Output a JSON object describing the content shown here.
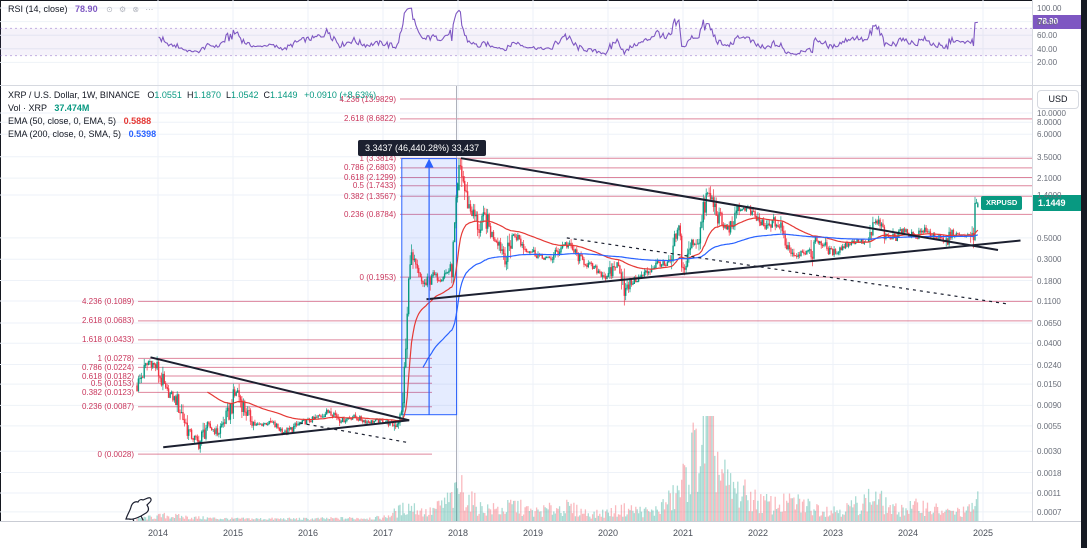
{
  "colors": {
    "up": "#089981",
    "down": "#f23645",
    "vol_up": "rgba(8,153,129,0.35)",
    "vol_down": "rgba(242,54,69,0.35)",
    "ema_fast": "#e53935",
    "ema_slow": "#2962ff",
    "rsi": "#7e57c2",
    "rsi_band": "rgba(126,87,194,0.08)",
    "rsi_band_line": "rgba(126,87,194,0.45)",
    "oversold": "rgba(242,54,69,0.28)",
    "fib": "#c9365c",
    "fib_line": "rgba(201,54,92,0.6)",
    "trend": "#1c2030",
    "measure_blue": "#2962ff",
    "measure_fill": "rgba(41,98,255,0.12)",
    "badge_green": "#089981",
    "grid": "#eef2f8",
    "axis_text": "#696e79"
  },
  "rsi_pane": {
    "legend": {
      "title": "RSI (14, close)",
      "value": "78.90"
    },
    "value_badge": "78.90",
    "axis_ticks": [
      [
        "100.00",
        100
      ],
      [
        "80.00",
        80
      ],
      [
        "60.00",
        60
      ],
      [
        "40.00",
        40
      ],
      [
        "20.00",
        20
      ]
    ],
    "band": [
      30,
      70
    ]
  },
  "main_pane": {
    "legend_symbol": {
      "title": "XRP / U.S. Dollar, 1W, BINANCE",
      "ohlc": [
        [
          "O",
          "1.0551"
        ],
        [
          "H",
          "1.1870"
        ],
        [
          "L",
          "1.0542"
        ],
        [
          "C",
          "1.1449"
        ]
      ],
      "change": "+0.0910 (+8.63%)"
    },
    "legend_vol": {
      "title": "Vol · XRP",
      "value": "37.474M"
    },
    "legend_ema50": {
      "title": "EMA (50, close, 0, EMA, 5)",
      "value": "0.5888"
    },
    "legend_ema200": {
      "title": "EMA (200, close, 0, SMA, 5)",
      "value": "0.5398"
    },
    "price_axis": {
      "currency_button": "USD",
      "symbol_tag": "XRPUSD",
      "ticks": [
        [
          "10.0000",
          10
        ],
        [
          "8.0000",
          8
        ],
        [
          "6.0000",
          6
        ],
        [
          "3.5000",
          3.5
        ],
        [
          "2.1000",
          2.1
        ],
        [
          "1.4000",
          1.4
        ],
        [
          "0.5000",
          0.5
        ],
        [
          "0.3000",
          0.3
        ],
        [
          "0.1800",
          0.18
        ],
        [
          "0.1100",
          0.11
        ],
        [
          "0.0650",
          0.065
        ],
        [
          "0.0400",
          0.04
        ],
        [
          "0.0240",
          0.024
        ],
        [
          "0.0150",
          0.015
        ],
        [
          "0.0090",
          0.009
        ],
        [
          "0.0055",
          0.0055
        ],
        [
          "0.0030",
          0.003
        ],
        [
          "0.0018",
          0.0018
        ],
        [
          "0.0011",
          0.0011
        ],
        [
          "0.0007",
          0.0007
        ]
      ]
    },
    "time_axis": [
      [
        "2014",
        2014
      ],
      [
        "2015",
        2015
      ],
      [
        "2016",
        2016
      ],
      [
        "2017",
        2017
      ],
      [
        "2018",
        2018
      ],
      [
        "2019",
        2019
      ],
      [
        "2020",
        2020
      ],
      [
        "2021",
        2021
      ],
      [
        "2022",
        2022
      ],
      [
        "2023",
        2023
      ],
      [
        "2024",
        2024
      ],
      [
        "2025",
        2025
      ]
    ]
  },
  "chart_data": {
    "type": "candlestick",
    "title": "XRP / U.S. Dollar, 1W, BINANCE",
    "symbol": "XRP/USD",
    "interval": "1W",
    "exchange": "BINANCE",
    "y_scale": "log",
    "currency": "USD",
    "time_range": [
      2013.72,
      2024.935
    ],
    "last_bar": {
      "open": 1.0551,
      "high": 1.187,
      "low": 1.0542,
      "close": 1.1449,
      "close_str": "1.1449",
      "change": "+0.0910",
      "change_pct": "+8.63%"
    },
    "indicators": {
      "rsi_14": 78.9,
      "ema_50": 0.5888,
      "ema_200": 0.5398,
      "volume_display": "37.474M"
    },
    "price_keyframes": [
      [
        2013.72,
        0.0145
      ],
      [
        2013.88,
        0.0265
      ],
      [
        2013.98,
        0.0225
      ],
      [
        2014.1,
        0.013
      ],
      [
        2014.25,
        0.01
      ],
      [
        2014.42,
        0.0046
      ],
      [
        2014.55,
        0.0036
      ],
      [
        2014.65,
        0.0056
      ],
      [
        2014.8,
        0.0047
      ],
      [
        2014.95,
        0.0078
      ],
      [
        2015.05,
        0.013
      ],
      [
        2015.17,
        0.0078
      ],
      [
        2015.3,
        0.0056
      ],
      [
        2015.5,
        0.006
      ],
      [
        2015.7,
        0.0047
      ],
      [
        2015.9,
        0.0059
      ],
      [
        2016.1,
        0.0066
      ],
      [
        2016.3,
        0.008
      ],
      [
        2016.45,
        0.0063
      ],
      [
        2016.6,
        0.0069
      ],
      [
        2016.8,
        0.0061
      ],
      [
        2017.0,
        0.0063
      ],
      [
        2017.15,
        0.0056
      ],
      [
        2017.25,
        0.0072
      ],
      [
        2017.3,
        0.03
      ],
      [
        2017.36,
        0.34
      ],
      [
        2017.42,
        0.25
      ],
      [
        2017.5,
        0.18
      ],
      [
        2017.58,
        0.16
      ],
      [
        2017.65,
        0.21
      ],
      [
        2017.75,
        0.19
      ],
      [
        2017.85,
        0.22
      ],
      [
        2017.92,
        0.25
      ],
      [
        2017.97,
        0.9
      ],
      [
        2018.02,
        2.9
      ],
      [
        2018.06,
        2.2
      ],
      [
        2018.1,
        1.4
      ],
      [
        2018.16,
        1.0
      ],
      [
        2018.22,
        0.85
      ],
      [
        2018.3,
        0.58
      ],
      [
        2018.36,
        0.83
      ],
      [
        2018.45,
        0.55
      ],
      [
        2018.55,
        0.45
      ],
      [
        2018.65,
        0.3
      ],
      [
        2018.72,
        0.54
      ],
      [
        2018.8,
        0.5
      ],
      [
        2018.9,
        0.38
      ],
      [
        2019.0,
        0.36
      ],
      [
        2019.12,
        0.31
      ],
      [
        2019.25,
        0.31
      ],
      [
        2019.42,
        0.44
      ],
      [
        2019.5,
        0.4
      ],
      [
        2019.62,
        0.31
      ],
      [
        2019.75,
        0.26
      ],
      [
        2019.9,
        0.22
      ],
      [
        2020.0,
        0.19
      ],
      [
        2020.1,
        0.27
      ],
      [
        2020.18,
        0.23
      ],
      [
        2020.23,
        0.14
      ],
      [
        2020.32,
        0.175
      ],
      [
        2020.45,
        0.2
      ],
      [
        2020.6,
        0.25
      ],
      [
        2020.68,
        0.28
      ],
      [
        2020.78,
        0.25
      ],
      [
        2020.86,
        0.3
      ],
      [
        2020.91,
        0.55
      ],
      [
        2020.95,
        0.6
      ],
      [
        2021.0,
        0.23
      ],
      [
        2021.06,
        0.29
      ],
      [
        2021.11,
        0.46
      ],
      [
        2021.17,
        0.44
      ],
      [
        2021.23,
        0.57
      ],
      [
        2021.28,
        1.0
      ],
      [
        2021.32,
        1.45
      ],
      [
        2021.36,
        1.35
      ],
      [
        2021.42,
        1.05
      ],
      [
        2021.46,
        0.88
      ],
      [
        2021.52,
        0.68
      ],
      [
        2021.6,
        0.62
      ],
      [
        2021.7,
        0.78
      ],
      [
        2021.76,
        1.02
      ],
      [
        2021.85,
        1.0
      ],
      [
        2021.95,
        0.84
      ],
      [
        2022.0,
        0.77
      ],
      [
        2022.1,
        0.62
      ],
      [
        2022.2,
        0.76
      ],
      [
        2022.3,
        0.63
      ],
      [
        2022.4,
        0.41
      ],
      [
        2022.5,
        0.33
      ],
      [
        2022.6,
        0.37
      ],
      [
        2022.7,
        0.34
      ],
      [
        2022.76,
        0.48
      ],
      [
        2022.85,
        0.45
      ],
      [
        2022.92,
        0.38
      ],
      [
        2023.0,
        0.35
      ],
      [
        2023.1,
        0.39
      ],
      [
        2023.2,
        0.44
      ],
      [
        2023.32,
        0.47
      ],
      [
        2023.42,
        0.45
      ],
      [
        2023.5,
        0.47
      ],
      [
        2023.55,
        0.74
      ],
      [
        2023.62,
        0.7
      ],
      [
        2023.7,
        0.52
      ],
      [
        2023.8,
        0.49
      ],
      [
        2023.88,
        0.61
      ],
      [
        2024.0,
        0.57
      ],
      [
        2024.1,
        0.52
      ],
      [
        2024.2,
        0.61
      ],
      [
        2024.3,
        0.55
      ],
      [
        2024.4,
        0.5
      ],
      [
        2024.5,
        0.44
      ],
      [
        2024.58,
        0.57
      ],
      [
        2024.68,
        0.53
      ],
      [
        2024.78,
        0.53
      ],
      [
        2024.84,
        0.52
      ],
      [
        2024.875,
        0.63
      ],
      [
        2024.9,
        1.05
      ],
      [
        2024.93,
        1.1449
      ]
    ],
    "volume_keyframes": [
      [
        2013.72,
        0.02
      ],
      [
        2014.1,
        0.05
      ],
      [
        2014.5,
        0.03
      ],
      [
        2015.0,
        0.02
      ],
      [
        2016.0,
        0.02
      ],
      [
        2017.0,
        0.03
      ],
      [
        2017.36,
        0.14
      ],
      [
        2017.6,
        0.07
      ],
      [
        2017.95,
        0.22
      ],
      [
        2018.03,
        0.32
      ],
      [
        2018.12,
        0.22
      ],
      [
        2018.3,
        0.12
      ],
      [
        2018.6,
        0.1
      ],
      [
        2018.74,
        0.15
      ],
      [
        2019.0,
        0.08
      ],
      [
        2019.42,
        0.13
      ],
      [
        2019.8,
        0.06
      ],
      [
        2020.0,
        0.08
      ],
      [
        2020.25,
        0.11
      ],
      [
        2020.6,
        0.08
      ],
      [
        2020.92,
        0.24
      ],
      [
        2021.02,
        0.38
      ],
      [
        2021.12,
        0.6
      ],
      [
        2021.25,
        0.7
      ],
      [
        2021.32,
        1.0
      ],
      [
        2021.4,
        0.7
      ],
      [
        2021.5,
        0.45
      ],
      [
        2021.62,
        0.3
      ],
      [
        2021.8,
        0.25
      ],
      [
        2022.0,
        0.18
      ],
      [
        2022.2,
        0.15
      ],
      [
        2022.5,
        0.17
      ],
      [
        2022.8,
        0.12
      ],
      [
        2023.0,
        0.1
      ],
      [
        2023.2,
        0.12
      ],
      [
        2023.56,
        0.22
      ],
      [
        2023.8,
        0.1
      ],
      [
        2024.0,
        0.12
      ],
      [
        2024.2,
        0.14
      ],
      [
        2024.5,
        0.08
      ],
      [
        2024.8,
        0.09
      ],
      [
        2024.93,
        0.2
      ]
    ],
    "fib_upper": [
      {
        "label": "4.236 (13.9829)",
        "price": 13.9829,
        "extend": true
      },
      {
        "label": "2.618 (8.6822)",
        "price": 8.6822,
        "extend": true
      },
      {
        "label": "1 (3.3814)",
        "price": 3.3814,
        "extend": true
      },
      {
        "label": "0.786 (2.6803)",
        "price": 2.6803,
        "extend": true
      },
      {
        "label": "0.618 (2.1299)",
        "price": 2.1299,
        "extend": true
      },
      {
        "label": "0.5 (1.7433)",
        "price": 1.7433,
        "extend": true
      },
      {
        "label": "0.382 (1.3567)",
        "price": 1.3567,
        "extend": true
      },
      {
        "label": "0.236 (0.8784)",
        "price": 0.8784,
        "extend": true
      },
      {
        "label": "0 (0.1953)",
        "price": 0.1953,
        "extend": true
      }
    ],
    "fib_lower": [
      {
        "label": "4.236 (0.1089)",
        "price": 0.1089,
        "extend": true
      },
      {
        "label": "2.618 (0.0683)",
        "price": 0.0683,
        "extend": true
      },
      {
        "label": "1.618 (0.0433)",
        "price": 0.0433,
        "extend": false
      },
      {
        "label": "1 (0.0278)",
        "price": 0.0278,
        "extend": false
      },
      {
        "label": "0.786 (0.0224)",
        "price": 0.0224,
        "extend": false
      },
      {
        "label": "0.618 (0.0182)",
        "price": 0.0182,
        "extend": false
      },
      {
        "label": "0.5 (0.0153)",
        "price": 0.0153,
        "extend": false
      },
      {
        "label": "0.382 (0.0123)",
        "price": 0.0123,
        "extend": false
      },
      {
        "label": "0.236 (0.0087)",
        "price": 0.0087,
        "extend": false
      },
      {
        "label": "0 (0.0028)",
        "price": 0.0028,
        "extend": false
      }
    ],
    "trendlines": [
      {
        "name": "wedge-resistance",
        "from": [
          2013.9,
          0.0285
        ],
        "to": [
          2017.35,
          0.0063
        ],
        "style": "solid"
      },
      {
        "name": "wedge-support",
        "from": [
          2014.07,
          0.0033
        ],
        "to": [
          2017.35,
          0.0063
        ],
        "style": "solid"
      },
      {
        "name": "wedge-dashed",
        "from": [
          2015.89,
          0.0059
        ],
        "to": [
          2017.33,
          0.0037
        ],
        "style": "dashed"
      },
      {
        "name": "triangle-resistance",
        "from": [
          2018.04,
          3.3814
        ],
        "to": [
          2025.2,
          0.374
        ],
        "style": "solid"
      },
      {
        "name": "triangle-support",
        "from": [
          2017.58,
          0.115
        ],
        "to": [
          2025.5,
          0.47
        ],
        "style": "solid"
      },
      {
        "name": "triangle-dashed",
        "from": [
          2019.45,
          0.5
        ],
        "to": [
          2025.35,
          0.102
        ],
        "style": "dashed"
      }
    ],
    "measure": {
      "from": [
        2017.25,
        0.0072
      ],
      "to": [
        2017.98,
        3.3509
      ],
      "tooltip": "3.3437 (46,440.28%) 33,437"
    }
  }
}
